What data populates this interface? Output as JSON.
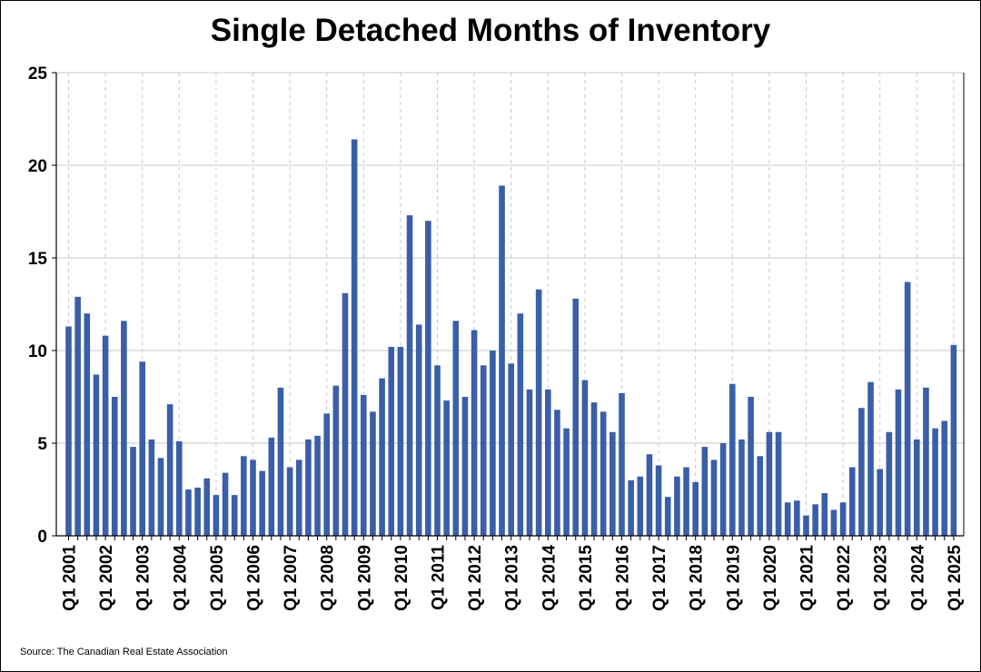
{
  "chart_data": {
    "type": "bar",
    "title": "Single Detached Months of Inventory",
    "source": "Source: The Canadian Real Estate Association",
    "xlabel": "",
    "ylabel": "",
    "ylim": [
      0,
      25
    ],
    "yticks": [
      0,
      5,
      10,
      15,
      20,
      25
    ],
    "grid": true,
    "bar_color": "#3a5fa8",
    "x_tick_labels": [
      "Q1 2001",
      "Q1 2002",
      "Q1 2003",
      "Q1 2004",
      "Q1 2005",
      "Q1 2006",
      "Q1 2007",
      "Q1 2008",
      "Q1 2009",
      "Q1 2010",
      "Q1 2011",
      "Q1 2012",
      "Q1 2013",
      "Q1 2014",
      "Q1 2015",
      "Q1 2016",
      "Q1 2017",
      "Q1 2018",
      "Q1 2019",
      "Q1 2020",
      "Q1 2021",
      "Q1 2022",
      "Q1 2023",
      "Q1 2024",
      "Q1 2025"
    ],
    "values": [
      11.3,
      12.9,
      12.0,
      8.7,
      10.8,
      7.5,
      11.6,
      4.8,
      9.4,
      5.2,
      4.2,
      7.1,
      5.1,
      2.5,
      2.6,
      3.1,
      2.2,
      3.4,
      2.2,
      4.3,
      4.1,
      3.5,
      5.3,
      8.0,
      3.7,
      4.1,
      5.2,
      5.4,
      6.6,
      8.1,
      13.1,
      21.4,
      7.6,
      6.7,
      8.5,
      10.2,
      10.2,
      17.3,
      11.4,
      17.0,
      9.2,
      7.3,
      11.6,
      7.5,
      11.1,
      9.2,
      10.0,
      18.9,
      9.3,
      12.0,
      7.9,
      13.3,
      7.9,
      6.8,
      5.8,
      12.8,
      8.4,
      7.2,
      6.7,
      5.6,
      7.7,
      3.0,
      3.2,
      4.4,
      3.8,
      2.1,
      3.2,
      3.7,
      2.9,
      4.8,
      4.1,
      5.0,
      8.2,
      5.2,
      7.5,
      4.3,
      5.6,
      5.6,
      1.8,
      1.9,
      1.1,
      1.7,
      2.3,
      1.4,
      1.8,
      3.7,
      6.9,
      8.3,
      3.6,
      5.6,
      7.9,
      13.7,
      5.2,
      8.0,
      5.8,
      6.2,
      10.3
    ]
  }
}
